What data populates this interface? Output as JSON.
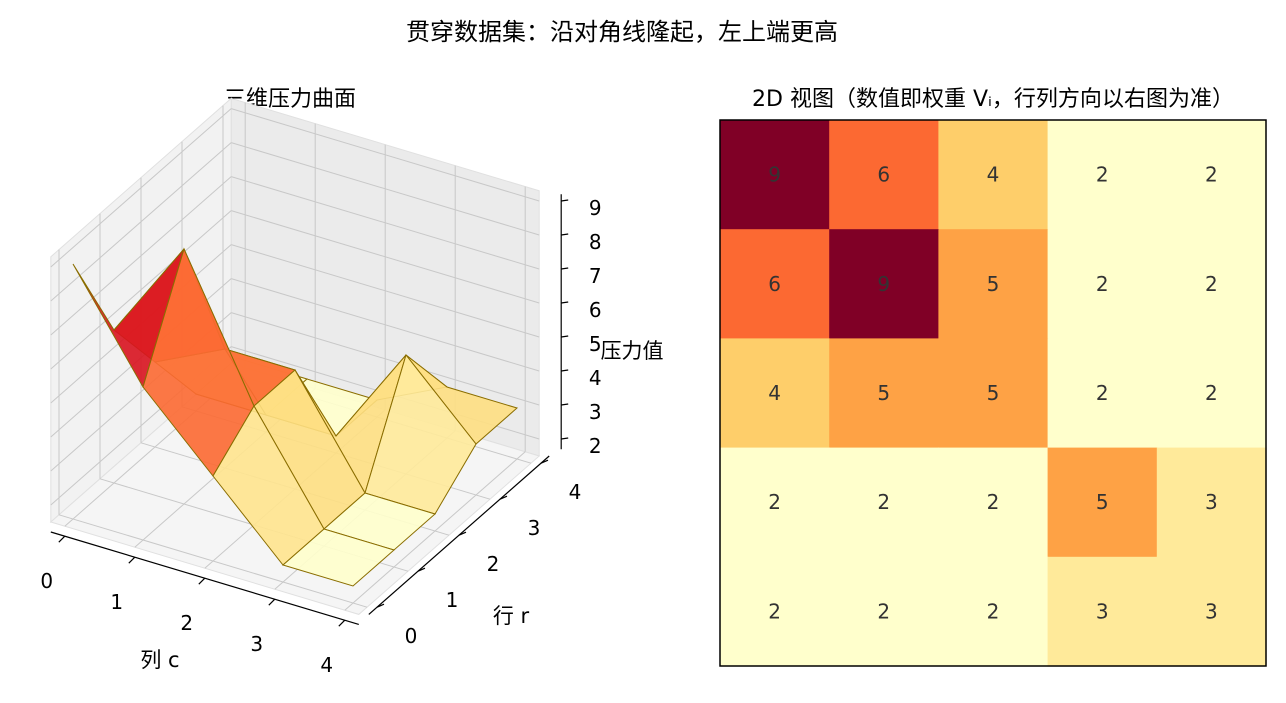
{
  "figure": {
    "suptitle": "贯穿数据集：沿对角线隆起，左上端更高"
  },
  "chart_data": [
    {
      "type": "surface3d",
      "title": "三维压力曲面",
      "xlabel": "列 c",
      "ylabel": "行 r",
      "zlabel": "压力值",
      "x_ticks": [
        "0",
        "1",
        "2",
        "3",
        "4"
      ],
      "y_ticks": [
        "0",
        "1",
        "2",
        "3",
        "4"
      ],
      "z_ticks": [
        "2",
        "3",
        "4",
        "5",
        "6",
        "7",
        "8",
        "9"
      ],
      "zlim": [
        2,
        9
      ],
      "grid": true,
      "values": [
        [
          9,
          6,
          4,
          2,
          2
        ],
        [
          6,
          9,
          5,
          2,
          2
        ],
        [
          4,
          5,
          5,
          2,
          2
        ],
        [
          2,
          2,
          2,
          5,
          3
        ],
        [
          2,
          2,
          2,
          3,
          3
        ]
      ],
      "colormap": [
        "#ffffcc",
        "#ffeda0",
        "#fed976",
        "#feb24c",
        "#fd8d3c",
        "#fc4e2a",
        "#e31a1c",
        "#bd0026",
        "#800026"
      ],
      "edge_color": "#8a6d00"
    },
    {
      "type": "heatmap",
      "title": "2D 视图（数值即权重 Vᵢ，行列方向以右图为准）",
      "values": [
        [
          9,
          6,
          4,
          2,
          2
        ],
        [
          6,
          9,
          5,
          2,
          2
        ],
        [
          4,
          5,
          5,
          2,
          2
        ],
        [
          2,
          2,
          2,
          5,
          3
        ],
        [
          2,
          2,
          2,
          3,
          3
        ]
      ],
      "vmin": 2,
      "vmax": 9,
      "colormap": [
        "#ffffcc",
        "#ffeda0",
        "#fed976",
        "#feb24c",
        "#fd8d3c",
        "#fc4e2a",
        "#e31a1c",
        "#bd0026",
        "#800026"
      ],
      "annotations": true
    }
  ]
}
